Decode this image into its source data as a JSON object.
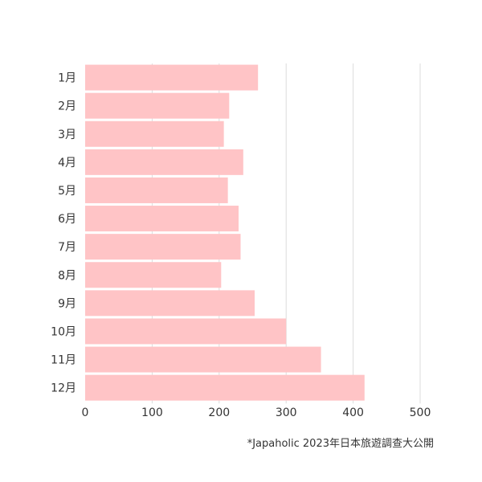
{
  "chart_data": {
    "type": "bar",
    "orientation": "horizontal",
    "categories": [
      "1月",
      "2月",
      "3月",
      "4月",
      "5月",
      "6月",
      "7月",
      "8月",
      "9月",
      "10月",
      "11月",
      "12月"
    ],
    "values": [
      258,
      215,
      207,
      236,
      213,
      229,
      232,
      203,
      253,
      300,
      352,
      417
    ],
    "xlim": [
      0,
      500
    ],
    "xticks": [
      0,
      100,
      200,
      300,
      400,
      500
    ],
    "grid": "vertical",
    "bar_color": "#ffc4c6",
    "title": "",
    "xlabel": "",
    "ylabel": ""
  },
  "source_note": "*Japaholic 2023年日本旅遊調查大公開"
}
